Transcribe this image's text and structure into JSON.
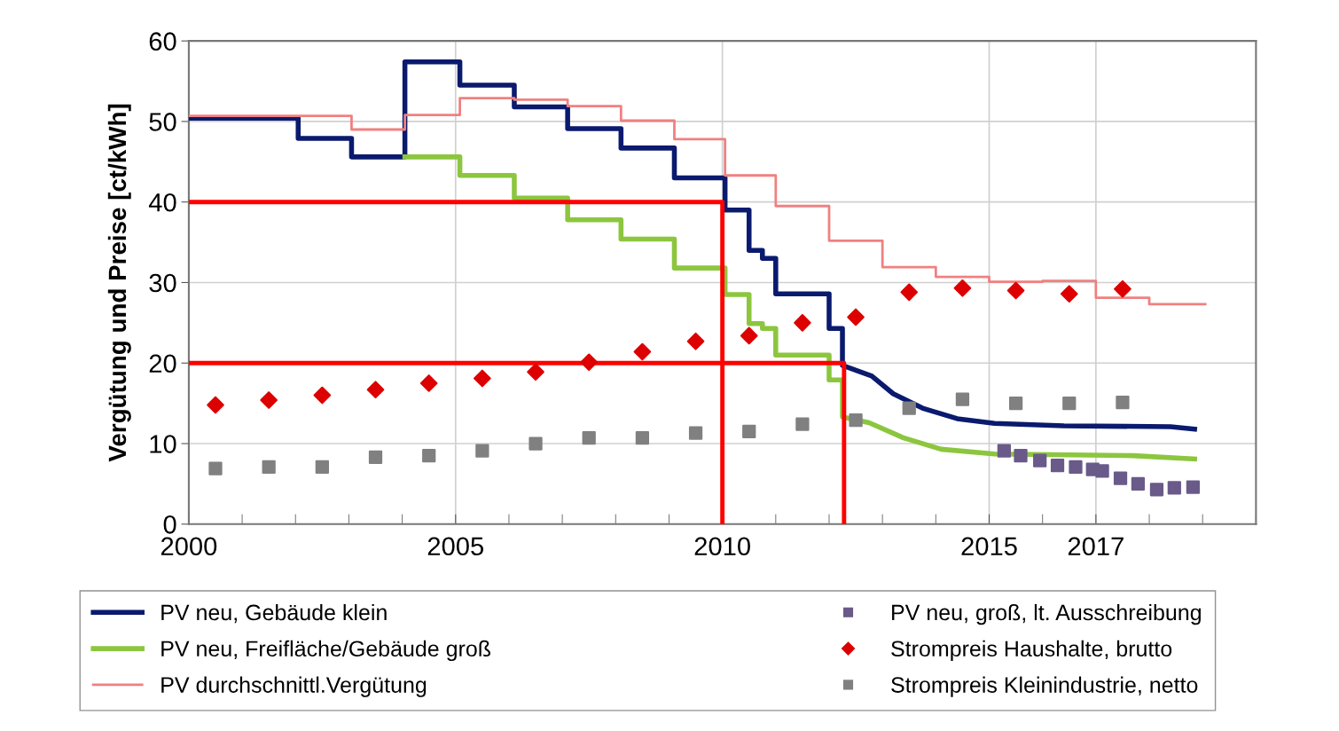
{
  "chart_data": {
    "type": "line",
    "ylabel": "Vergütung und Preise [ct/kWh]",
    "xlim": [
      2000,
      2020
    ],
    "ylim": [
      0,
      60
    ],
    "yticks": [
      0,
      10,
      20,
      30,
      40,
      50,
      60
    ],
    "xticks": [
      2000,
      {
        "value": 2001,
        "label": null
      },
      {
        "value": 2002,
        "label": null
      },
      {
        "value": 2003,
        "label": null
      },
      {
        "value": 2004,
        "label": null
      },
      2005,
      {
        "value": 2006,
        "label": null
      },
      {
        "value": 2007,
        "label": null
      },
      {
        "value": 2008,
        "label": null
      },
      {
        "value": 2009,
        "label": null
      },
      2010,
      {
        "value": 2011,
        "label": null
      },
      {
        "value": 2012,
        "label": null
      },
      {
        "value": 2013,
        "label": null
      },
      {
        "value": 2014,
        "label": null
      },
      2015,
      {
        "value": 2016,
        "label": null
      },
      2017,
      {
        "value": 2018,
        "label": null
      },
      {
        "value": 2019,
        "label": null
      },
      {
        "value": 2020,
        "label": null
      }
    ],
    "grid": true,
    "legend": "bottom",
    "series": [
      {
        "name": "PV neu, Gebäude klein",
        "color": "#0a1a6e",
        "x": [
          2000,
          2002.05,
          2002.05,
          2003.05,
          2003.05,
          2004.05,
          2004.05,
          2005.08,
          2005.08,
          2006.1,
          2006.1,
          2007.1,
          2007.1,
          2008.1,
          2008.1,
          2009.1,
          2009.1,
          2010.05,
          2010.05,
          2010.5,
          2010.5,
          2010.75,
          2010.75,
          2011.0,
          2011.0,
          2012.0,
          2012.0,
          2012.25,
          2012.25,
          2012.8,
          2013.2,
          2013.75,
          2014.4,
          2015.1,
          2016.4,
          2018.4,
          2018.85
        ],
        "values": [
          50.4,
          50.4,
          47.9,
          47.9,
          45.6,
          45.6,
          57.4,
          57.4,
          54.5,
          54.5,
          51.8,
          51.8,
          49.1,
          49.1,
          46.7,
          46.7,
          43.0,
          43.0,
          39.0,
          39.0,
          34.0,
          34.0,
          33.0,
          33.0,
          28.6,
          28.6,
          24.3,
          24.3,
          19.7,
          18.4,
          16.2,
          14.4,
          13.1,
          12.5,
          12.2,
          12.1,
          11.8
        ]
      },
      {
        "name": "PV neu, Freifläche/Gebäude groß",
        "color": "#8cc63f",
        "x": [
          2004.05,
          2005.08,
          2005.08,
          2006.1,
          2006.1,
          2007.1,
          2007.1,
          2008.1,
          2008.1,
          2009.1,
          2009.1,
          2010.05,
          2010.05,
          2010.5,
          2010.5,
          2010.75,
          2010.75,
          2011.0,
          2011.0,
          2012.0,
          2012.0,
          2012.25,
          2012.25,
          2012.75,
          2013.4,
          2014.1,
          2015.1,
          2017.7,
          2018.85
        ],
        "values": [
          45.6,
          45.6,
          43.3,
          43.3,
          40.5,
          40.5,
          37.8,
          37.8,
          35.4,
          35.4,
          31.8,
          31.8,
          28.5,
          28.5,
          24.9,
          24.9,
          24.3,
          24.3,
          21.0,
          21.0,
          17.9,
          17.9,
          13.3,
          12.6,
          10.7,
          9.3,
          8.7,
          8.5,
          8.1
        ]
      },
      {
        "name": "PV durchschnittl.Vergütung",
        "type": "step",
        "color": "#f08080",
        "x": [
          2000,
          2003.05,
          2004.05,
          2005.08,
          2006.1,
          2007.1,
          2008.1,
          2009.1,
          2010.05,
          2011.0,
          2012.0,
          2013.0,
          2014.0,
          2015.0,
          2016.0,
          2017.0,
          2018.0,
          2019.05
        ],
        "values": [
          50.7,
          49.0,
          50.8,
          52.9,
          52.7,
          51.9,
          50.1,
          47.8,
          43.3,
          39.5,
          35.2,
          31.9,
          30.7,
          30.1,
          30.2,
          28.1,
          27.3,
          27.3
        ]
      },
      {
        "name": "PV neu, groß, lt. Ausschreibung",
        "type": "scatter",
        "marker": "square",
        "color": "#6a5a8a",
        "x": [
          2015.28,
          2015.59,
          2015.95,
          2016.28,
          2016.62,
          2016.94,
          2017.12,
          2017.46,
          2017.79,
          2018.14,
          2018.47,
          2018.82
        ],
        "values": [
          9.1,
          8.5,
          7.9,
          7.3,
          7.1,
          6.8,
          6.6,
          5.7,
          5.0,
          4.3,
          4.5,
          4.6
        ]
      },
      {
        "name": "Strompreis Haushalte, brutto",
        "type": "scatter",
        "marker": "diamond",
        "color": "#dd0000",
        "x": [
          2000.5,
          2001.5,
          2002.5,
          2003.5,
          2004.5,
          2005.5,
          2006.5,
          2007.5,
          2008.5,
          2009.5,
          2010.5,
          2011.5,
          2012.5,
          2013.5,
          2014.5,
          2015.5,
          2016.5,
          2017.5
        ],
        "values": [
          14.8,
          15.4,
          16.0,
          16.7,
          17.5,
          18.1,
          18.9,
          20.1,
          21.4,
          22.7,
          23.4,
          25.0,
          25.7,
          28.8,
          29.3,
          29.0,
          28.6,
          29.2
        ]
      },
      {
        "name": "Strompreis Kleinindustrie, netto",
        "type": "scatter",
        "marker": "square",
        "color": "#808080",
        "x": [
          2000.5,
          2001.5,
          2002.5,
          2003.5,
          2004.5,
          2005.5,
          2006.5,
          2007.5,
          2008.5,
          2009.5,
          2010.5,
          2011.5,
          2012.5,
          2013.5,
          2014.5,
          2015.5,
          2016.5,
          2017.5
        ],
        "values": [
          6.9,
          7.1,
          7.1,
          8.3,
          8.5,
          9.1,
          10.0,
          10.7,
          10.7,
          11.3,
          11.5,
          12.4,
          12.9,
          14.4,
          15.5,
          15.0,
          15.0,
          15.1
        ]
      },
      {
        "type": "line",
        "color": "#ff0000",
        "x": [
          2000,
          2010.0,
          2010.0
        ],
        "values": [
          40,
          40,
          0
        ]
      },
      {
        "type": "line",
        "color": "#ff0000",
        "x": [
          2000,
          2012.28,
          2012.28
        ],
        "values": [
          20,
          20,
          0
        ]
      }
    ]
  }
}
